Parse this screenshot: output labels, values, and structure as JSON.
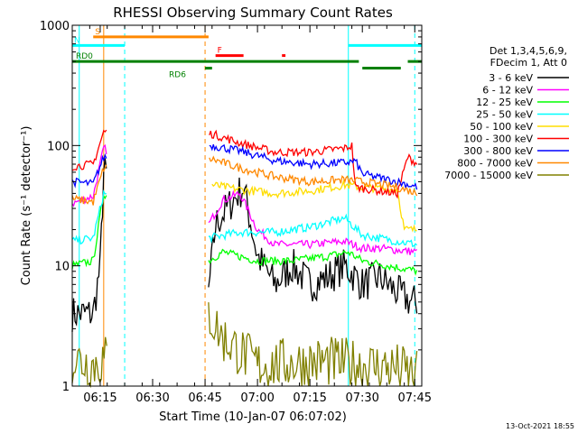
{
  "chart_data": {
    "type": "line",
    "title": "RHESSI Observing Summary Count Rates",
    "xlabel": "Start Time (10-Jan-07 06:07:02)",
    "ylabel": "Count Rate (s⁻¹ detector⁻¹)",
    "yscale": "log",
    "ylim": [
      1,
      1000
    ],
    "xlim": [
      "06:07",
      "07:47"
    ],
    "x_ticks": [
      "06:15",
      "06:30",
      "06:45",
      "07:00",
      "07:15",
      "07:30",
      "07:45"
    ],
    "y_ticks": [
      "1",
      "10",
      "100",
      "1000"
    ],
    "legend_position": "right",
    "legend_header": [
      "Det 1,3,4,5,6,9,",
      "FDecim 1, Att 0"
    ],
    "timestamp": "13-Oct-2021 18:55",
    "series": [
      {
        "name": "3 - 6 keV",
        "color": "#000000",
        "points": [
          [
            "06:07",
            4
          ],
          [
            "06:13",
            4
          ],
          [
            "06:15",
            10
          ],
          [
            "06:16",
            60
          ],
          [
            "06:46",
            6
          ],
          [
            "06:48",
            22
          ],
          [
            "06:52",
            32
          ],
          [
            "06:56",
            45
          ],
          [
            "07:00",
            12
          ],
          [
            "07:05",
            7
          ],
          [
            "07:10",
            10
          ],
          [
            "07:15",
            7
          ],
          [
            "07:20",
            8
          ],
          [
            "07:25",
            10
          ],
          [
            "07:30",
            7
          ],
          [
            "07:35",
            8
          ],
          [
            "07:40",
            6
          ],
          [
            "07:44",
            5
          ],
          [
            "07:46",
            5
          ]
        ]
      },
      {
        "name": "6 - 12 keV",
        "color": "#ff00ff",
        "points": [
          [
            "06:07",
            33
          ],
          [
            "06:13",
            38
          ],
          [
            "06:16",
            95
          ],
          [
            "06:46",
            22
          ],
          [
            "06:50",
            35
          ],
          [
            "06:55",
            40
          ],
          [
            "07:00",
            20
          ],
          [
            "07:05",
            15
          ],
          [
            "07:15",
            15
          ],
          [
            "07:25",
            16
          ],
          [
            "07:30",
            14
          ],
          [
            "07:35",
            14
          ],
          [
            "07:46",
            13
          ]
        ]
      },
      {
        "name": "12 - 25 keV",
        "color": "#00ff00",
        "points": [
          [
            "06:07",
            10
          ],
          [
            "06:13",
            11
          ],
          [
            "06:16",
            40
          ],
          [
            "06:46",
            11
          ],
          [
            "06:50",
            13
          ],
          [
            "07:00",
            11
          ],
          [
            "07:10",
            11
          ],
          [
            "07:20",
            12
          ],
          [
            "07:26",
            13
          ],
          [
            "07:30",
            11
          ],
          [
            "07:46",
            9
          ]
        ]
      },
      {
        "name": "25 - 50 keV",
        "color": "#00ffff",
        "points": [
          [
            "06:07",
            16
          ],
          [
            "06:13",
            17
          ],
          [
            "06:16",
            40
          ],
          [
            "06:46",
            17
          ],
          [
            "06:55",
            19
          ],
          [
            "07:05",
            19
          ],
          [
            "07:15",
            21
          ],
          [
            "07:25",
            25
          ],
          [
            "07:30",
            18
          ],
          [
            "07:40",
            16
          ],
          [
            "07:46",
            15
          ]
        ]
      },
      {
        "name": "50 - 100 keV",
        "color": "#ffdd00",
        "points": [
          [
            "06:47",
            47
          ],
          [
            "06:55",
            43
          ],
          [
            "07:05",
            40
          ],
          [
            "07:15",
            42
          ],
          [
            "07:25",
            47
          ],
          [
            "07:30",
            45
          ],
          [
            "07:40",
            43
          ],
          [
            "07:42",
            20
          ],
          [
            "07:46",
            20
          ]
        ]
      },
      {
        "name": "100 - 300 keV",
        "color": "#ff0000",
        "points": [
          [
            "06:07",
            67
          ],
          [
            "06:13",
            70
          ],
          [
            "06:16",
            130
          ],
          [
            "06:47",
            125
          ],
          [
            "06:55",
            105
          ],
          [
            "07:05",
            88
          ],
          [
            "07:15",
            88
          ],
          [
            "07:25",
            95
          ],
          [
            "07:27",
            100
          ],
          [
            "07:28",
            45
          ],
          [
            "07:40",
            40
          ],
          [
            "07:43",
            80
          ],
          [
            "07:46",
            70
          ]
        ]
      },
      {
        "name": "300 - 800 keV",
        "color": "#0000ff",
        "points": [
          [
            "06:07",
            50
          ],
          [
            "06:13",
            48
          ],
          [
            "06:16",
            80
          ],
          [
            "06:47",
            100
          ],
          [
            "06:55",
            90
          ],
          [
            "07:05",
            75
          ],
          [
            "07:15",
            70
          ],
          [
            "07:25",
            72
          ],
          [
            "07:28",
            74
          ],
          [
            "07:30",
            58
          ],
          [
            "07:40",
            50
          ],
          [
            "07:46",
            45
          ]
        ]
      },
      {
        "name": "800 - 7000 keV",
        "color": "#ff8800",
        "points": [
          [
            "06:07",
            36
          ],
          [
            "06:13",
            34
          ],
          [
            "06:16",
            65
          ],
          [
            "06:47",
            77
          ],
          [
            "06:55",
            65
          ],
          [
            "07:05",
            55
          ],
          [
            "07:15",
            50
          ],
          [
            "07:25",
            52
          ],
          [
            "07:30",
            50
          ],
          [
            "07:40",
            45
          ],
          [
            "07:46",
            40
          ]
        ]
      },
      {
        "name": "7000 - 15000 keV",
        "color": "#808000",
        "points": [
          [
            "06:07",
            1.7
          ],
          [
            "06:13",
            1.5
          ],
          [
            "06:46",
            4
          ],
          [
            "06:50",
            2.5
          ],
          [
            "07:00",
            1.5
          ],
          [
            "07:20",
            1.6
          ],
          [
            "07:30",
            1.5
          ],
          [
            "07:40",
            1.4
          ],
          [
            "07:46",
            1.2
          ]
        ]
      }
    ],
    "state_bars": [
      {
        "label": "S",
        "color": "#ff8800",
        "start": "06:13",
        "end": "06:46",
        "level": 800
      },
      {
        "label": "N",
        "color": "#00ffff",
        "start": "06:07",
        "end": "06:22",
        "level": 680
      },
      {
        "label": "",
        "color": "#00ffff",
        "start": "07:26",
        "end": "07:47",
        "level": 680
      },
      {
        "label": "F",
        "color": "#ff0000",
        "start": "06:48",
        "end": "06:56",
        "level": 560
      },
      {
        "label": "",
        "color": "#ff0000",
        "start": "07:07",
        "end": "07:08",
        "level": 560
      },
      {
        "label": "RD0",
        "color": "#008000",
        "start": "06:07",
        "end": "07:29",
        "level": 500
      },
      {
        "label": "RD6",
        "color": "#008000",
        "start": "06:45",
        "end": "06:47",
        "level": 440
      },
      {
        "label": "",
        "color": "#008000",
        "start": "07:30",
        "end": "07:41",
        "level": 440
      },
      {
        "label": "",
        "color": "#008000",
        "start": "07:43",
        "end": "07:47",
        "level": 500
      }
    ],
    "vlines": [
      {
        "time": "06:09",
        "color": "#00ffff",
        "dashed": false
      },
      {
        "time": "06:22",
        "color": "#00ffff",
        "dashed": true
      },
      {
        "time": "07:26",
        "color": "#00ffff",
        "dashed": false
      },
      {
        "time": "07:45",
        "color": "#00ffff",
        "dashed": true
      },
      {
        "time": "06:16",
        "color": "#ff8800",
        "dashed": false
      },
      {
        "time": "06:45",
        "color": "#ff8800",
        "dashed": true
      }
    ]
  }
}
